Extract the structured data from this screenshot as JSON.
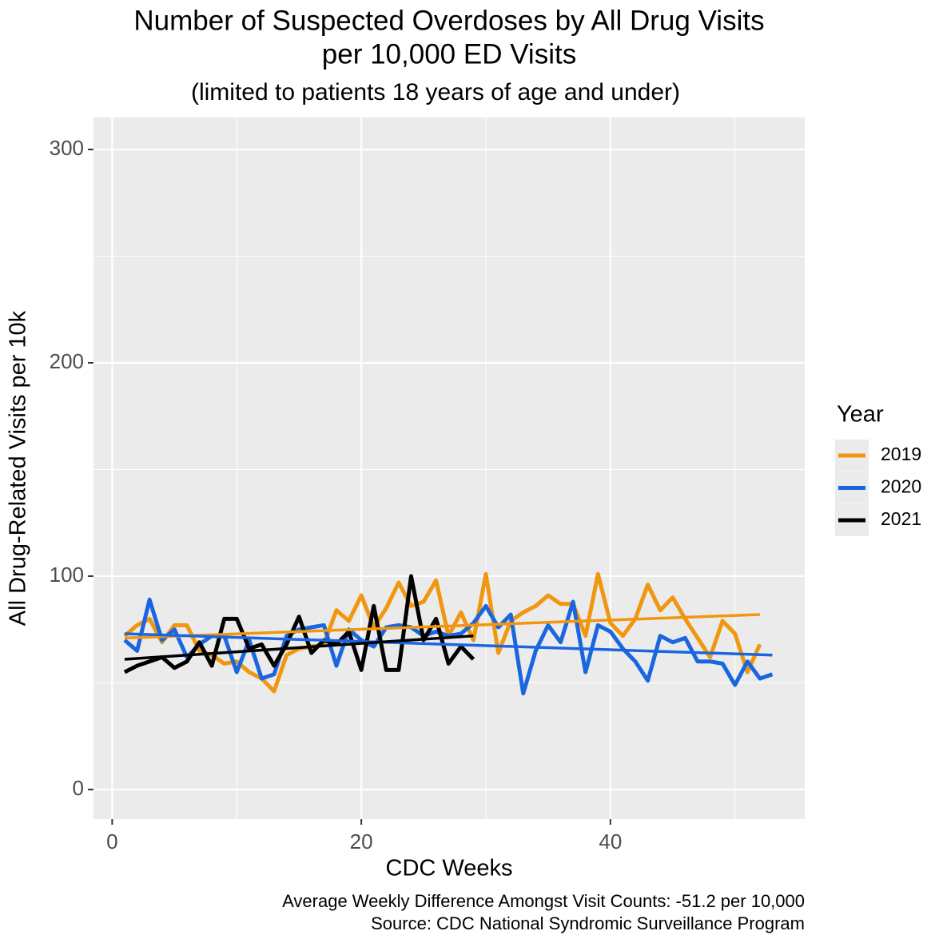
{
  "chart_data": {
    "type": "line",
    "title": [
      "Number of Suspected Overdoses by All Drug Visits",
      "per 10,000 ED Visits"
    ],
    "subtitle": "(limited to patients 18 years of age and under)",
    "x_label": "CDC Weeks",
    "y_label": "All Drug-Related Visits per 10k",
    "caption": [
      "Average Weekly Difference Amongst Visit Counts: -51.2 per 10,000",
      "Source: CDC National Syndromic Surveillance Program"
    ],
    "legend_title": "Year",
    "legend_position": "right",
    "grid": true,
    "xlim": [
      -1.5,
      55.6
    ],
    "xticks": [
      0,
      20,
      40
    ],
    "xminor": [
      10,
      30,
      50
    ],
    "ylim": [
      -13.9,
      315
    ],
    "yticks": [
      0,
      100,
      200,
      300
    ],
    "yminor": [
      50,
      150,
      250
    ],
    "series": [
      {
        "name": "2019",
        "color": "#f0960f",
        "x": [
          1,
          2,
          3,
          4,
          5,
          6,
          7,
          8,
          9,
          10,
          11,
          12,
          13,
          14,
          15,
          16,
          17,
          18,
          19,
          20,
          21,
          22,
          23,
          24,
          25,
          26,
          27,
          28,
          29,
          30,
          31,
          32,
          33,
          34,
          35,
          36,
          37,
          38,
          39,
          40,
          41,
          42,
          43,
          44,
          45,
          46,
          47,
          48,
          49,
          50,
          51,
          52
        ],
        "values": [
          72,
          77,
          80,
          69,
          77,
          77,
          65,
          63,
          59,
          60,
          55,
          52,
          46,
          63,
          66,
          67,
          68,
          84,
          79,
          91,
          76,
          85,
          97,
          86,
          88,
          98,
          72,
          83,
          70,
          101,
          64,
          79,
          83,
          86,
          91,
          87,
          87,
          72,
          101,
          78,
          72,
          80,
          96,
          84,
          90,
          80,
          71,
          62,
          79,
          73,
          55,
          68
        ],
        "trend": {
          "x": [
            1,
            52
          ],
          "values": [
            71,
            82
          ]
        }
      },
      {
        "name": "2020",
        "color": "#1a66e0",
        "x": [
          1,
          2,
          3,
          4,
          5,
          6,
          7,
          8,
          9,
          10,
          11,
          12,
          13,
          14,
          15,
          16,
          17,
          18,
          19,
          20,
          21,
          22,
          23,
          24,
          25,
          26,
          27,
          28,
          29,
          30,
          31,
          32,
          33,
          34,
          35,
          36,
          37,
          38,
          39,
          40,
          41,
          42,
          43,
          44,
          45,
          46,
          47,
          48,
          49,
          50,
          51,
          52,
          53
        ],
        "values": [
          70,
          65,
          89,
          70,
          75,
          62,
          68,
          72,
          72,
          55,
          70,
          52,
          54,
          72,
          75,
          76,
          77,
          58,
          75,
          70,
          67,
          76,
          77,
          76,
          72,
          74,
          72,
          73,
          78,
          86,
          76,
          82,
          45,
          65,
          77,
          69,
          88,
          55,
          77,
          74,
          66,
          60,
          51,
          72,
          69,
          71,
          60,
          60,
          59,
          49,
          60,
          52,
          54
        ],
        "trend": {
          "x": [
            1,
            53
          ],
          "values": [
            73,
            63
          ]
        }
      },
      {
        "name": "2021",
        "color": "#000000",
        "x": [
          1,
          2,
          3,
          4,
          5,
          6,
          7,
          8,
          9,
          10,
          11,
          12,
          13,
          14,
          15,
          16,
          17,
          18,
          19,
          20,
          21,
          22,
          23,
          24,
          25,
          26,
          27,
          28,
          29
        ],
        "values": [
          55,
          58,
          60,
          62,
          57,
          60,
          69,
          58,
          80,
          80,
          66,
          68,
          58,
          68,
          81,
          64,
          70,
          68,
          74,
          56,
          86,
          56,
          56,
          100,
          70,
          80,
          59,
          67,
          61
        ],
        "trend": {
          "x": [
            1,
            29
          ],
          "values": [
            61,
            72
          ]
        }
      }
    ]
  }
}
